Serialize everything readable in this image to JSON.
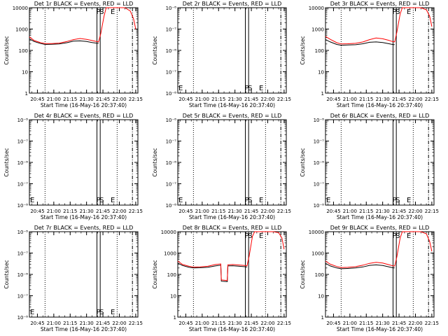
{
  "chart_data": [
    {
      "type": "line",
      "title": "Det 1r BLACK = Events, RED = LLD",
      "xlabel": "Start Time (16-May-16 20:37:40)",
      "ylabel": "Counts/sec",
      "yscale": "log",
      "xlim": [
        "20:37:40",
        "22:17:00"
      ],
      "ylim": [
        1,
        10000
      ],
      "x_tick_labels": [
        "20:45",
        "21:00",
        "21:15",
        "21:30",
        "21:45",
        "22:00",
        "22:15"
      ],
      "y_tick_labels": [
        "1",
        "10",
        "100",
        "1000",
        "10000"
      ],
      "annotations": [
        "P",
        "S",
        "E"
      ],
      "series": [
        {
          "color": "#000000",
          "x": [
            "20:37:40",
            "20:42",
            "20:48",
            "20:52",
            "20:58",
            "21:05",
            "21:12",
            "21:18",
            "21:24",
            "21:30",
            "21:35",
            "21:39",
            "21:41"
          ],
          "values": [
            350,
            260,
            210,
            190,
            195,
            200,
            230,
            270,
            280,
            260,
            235,
            220,
            215
          ]
        },
        {
          "color": "#ff0000",
          "x": [
            "20:37:40",
            "20:42",
            "20:48",
            "20:52",
            "20:58",
            "21:05",
            "21:12",
            "21:18",
            "21:24",
            "21:30",
            "21:35",
            "21:39",
            "21:41",
            "21:43",
            "21:46",
            "21:48",
            "22:00",
            "22:05",
            "22:10",
            "22:13",
            "22:15"
          ],
          "values": [
            430,
            290,
            230,
            210,
            210,
            220,
            260,
            320,
            360,
            330,
            290,
            260,
            250,
            600,
            4000,
            10000,
            10000,
            10000,
            7000,
            3000,
            1000
          ]
        }
      ]
    },
    {
      "type": "line",
      "title": "Det 2r BLACK = Events, RED = LLD",
      "xlabel": "Start Time (16-May-16 20:37:40)",
      "ylabel": "Counts/sec",
      "yscale": "log",
      "xlim": [
        "20:37:40",
        "22:17:00"
      ],
      "ylim": [
        1e-06,
        1e-08
      ],
      "x_tick_labels": [
        "20:45",
        "21:00",
        "21:15",
        "21:30",
        "21:45",
        "22:00",
        "22:15"
      ],
      "y_tick_labels": [
        "10⁻⁸",
        "10⁻⁷",
        "10⁻⁸",
        "10⁻⁷",
        "10⁻⁸"
      ],
      "annotations": [
        "E",
        "P",
        "S",
        "E"
      ],
      "series": []
    },
    {
      "type": "line",
      "title": "Det 3r BLACK = Events, RED = LLD",
      "xlabel": "Start Time (16-May-16 20:37:40)",
      "ylabel": "Counts/sec",
      "yscale": "log",
      "xlim": [
        "20:37:40",
        "22:17:00"
      ],
      "ylim": [
        1,
        10000
      ],
      "x_tick_labels": [
        "20:45",
        "21:00",
        "21:15",
        "21:30",
        "21:45",
        "22:00",
        "22:15"
      ],
      "y_tick_labels": [
        "1",
        "10",
        "100",
        "1000",
        "10000"
      ],
      "annotations": [
        "P",
        "S",
        "E"
      ],
      "series": [
        {
          "color": "#000000",
          "x": [
            "20:37:40",
            "20:42",
            "20:48",
            "20:52",
            "20:58",
            "21:05",
            "21:12",
            "21:18",
            "21:24",
            "21:30",
            "21:35",
            "21:39",
            "21:41"
          ],
          "values": [
            320,
            250,
            190,
            175,
            180,
            185,
            205,
            240,
            250,
            235,
            210,
            190,
            185
          ]
        },
        {
          "color": "#ff0000",
          "x": [
            "20:37:40",
            "20:42",
            "20:48",
            "20:52",
            "20:58",
            "21:05",
            "21:12",
            "21:18",
            "21:24",
            "21:30",
            "21:35",
            "21:39",
            "21:41",
            "21:43",
            "21:46",
            "21:48",
            "22:00",
            "22:05",
            "22:10",
            "22:13",
            "22:15"
          ],
          "values": [
            450,
            330,
            230,
            200,
            205,
            215,
            250,
            320,
            380,
            350,
            300,
            260,
            250,
            700,
            5000,
            10000,
            10000,
            10000,
            8000,
            4000,
            1300
          ]
        }
      ]
    },
    {
      "type": "line",
      "title": "Det 4r BLACK = Events, RED = LLD",
      "xlabel": "Start Time (16-May-16 20:37:40)",
      "ylabel": "Counts/sec",
      "yscale": "log",
      "xlim": [
        "20:37:40",
        "22:17:00"
      ],
      "ylim": [
        1e-06,
        1e-08
      ],
      "x_tick_labels": [
        "20:45",
        "21:00",
        "21:15",
        "21:30",
        "21:45",
        "22:00",
        "22:15"
      ],
      "y_tick_labels": [
        "10⁻⁸",
        "10⁻⁷",
        "10⁻⁸",
        "10⁻⁷",
        "10⁻⁸"
      ],
      "annotations": [
        "E",
        "P",
        "S",
        "E"
      ],
      "series": []
    },
    {
      "type": "line",
      "title": "Det 5r BLACK = Events, RED = LLD",
      "xlabel": "Start Time (16-May-16 20:37:40)",
      "ylabel": "Counts/sec",
      "yscale": "log",
      "xlim": [
        "20:37:40",
        "22:17:00"
      ],
      "ylim": [
        1e-06,
        1e-08
      ],
      "x_tick_labels": [
        "20:45",
        "21:00",
        "21:15",
        "21:30",
        "21:45",
        "22:00",
        "22:15"
      ],
      "y_tick_labels": [
        "10⁻⁸",
        "10⁻⁷",
        "10⁻⁸",
        "10⁻⁷",
        "10⁻⁸"
      ],
      "annotations": [
        "E",
        "P",
        "S",
        "E"
      ],
      "series": []
    },
    {
      "type": "line",
      "title": "Det 6r BLACK = Events, RED = LLD",
      "xlabel": "Start Time (16-May-16 20:37:40)",
      "ylabel": "Counts/sec",
      "yscale": "log",
      "xlim": [
        "20:37:40",
        "22:17:00"
      ],
      "ylim": [
        1e-06,
        1e-08
      ],
      "x_tick_labels": [
        "20:45",
        "21:00",
        "21:15",
        "21:30",
        "21:45",
        "22:00",
        "22:15"
      ],
      "y_tick_labels": [
        "10⁻⁸",
        "10⁻⁷",
        "10⁻⁸",
        "10⁻⁷",
        "10⁻⁸"
      ],
      "annotations": [
        "E",
        "P",
        "S",
        "E"
      ],
      "series": []
    },
    {
      "type": "line",
      "title": "Det 7r BLACK = Events, RED = LLD",
      "xlabel": "Start Time (16-May-16 20:37:40)",
      "ylabel": "Counts/sec",
      "yscale": "log",
      "xlim": [
        "20:37:40",
        "22:17:00"
      ],
      "ylim": [
        1e-06,
        1e-08
      ],
      "x_tick_labels": [
        "20:45",
        "21:00",
        "21:15",
        "21:30",
        "21:45",
        "22:00",
        "22:15"
      ],
      "y_tick_labels": [
        "10⁻⁸",
        "10⁻⁷",
        "10⁻⁸",
        "10⁻⁷",
        "10⁻⁸"
      ],
      "annotations": [
        "E",
        "P",
        "S",
        "E"
      ],
      "series": []
    },
    {
      "type": "line",
      "title": "Det 8r BLACK = Events, RED = LLD",
      "xlabel": "Start Time (16-May-16 20:37:40)",
      "ylabel": "Counts/sec",
      "yscale": "log",
      "xlim": [
        "20:37:40",
        "22:17:00"
      ],
      "ylim": [
        1,
        10000
      ],
      "x_tick_labels": [
        "20:45",
        "21:00",
        "21:15",
        "21:30",
        "21:45",
        "22:00",
        "22:15"
      ],
      "y_tick_labels": [
        "1",
        "10",
        "100",
        "1000",
        "10000"
      ],
      "annotations": [
        "P",
        "S",
        "E"
      ],
      "series": [
        {
          "color": "#000000",
          "x": [
            "20:37:40",
            "20:42",
            "20:48",
            "20:52",
            "20:58",
            "21:05",
            "21:12",
            "21:17",
            "21:17.5",
            "21:23",
            "21:23.5",
            "21:28",
            "21:39",
            "21:41"
          ],
          "values": [
            340,
            260,
            215,
            200,
            205,
            215,
            250,
            270,
            48,
            46,
            250,
            255,
            230,
            220
          ]
        },
        {
          "color": "#ff0000",
          "x": [
            "20:37:40",
            "20:42",
            "20:48",
            "20:52",
            "20:58",
            "21:05",
            "21:12",
            "21:17",
            "21:17.5",
            "21:23",
            "21:23.5",
            "21:28",
            "21:39",
            "21:41",
            "21:43",
            "21:46",
            "21:48",
            "22:00",
            "22:05",
            "22:10",
            "22:13",
            "22:15"
          ],
          "values": [
            420,
            290,
            240,
            220,
            225,
            240,
            290,
            310,
            55,
            52,
            280,
            290,
            260,
            250,
            700,
            6000,
            10000,
            10000,
            10000,
            9000,
            5000,
            1500
          ]
        }
      ]
    },
    {
      "type": "line",
      "title": "Det 9r BLACK = Events, RED = LLD",
      "xlabel": "Start Time (16-May-16 20:37:40)",
      "ylabel": "Counts/sec",
      "yscale": "log",
      "xlim": [
        "20:37:40",
        "22:17:00"
      ],
      "ylim": [
        1,
        10000
      ],
      "x_tick_labels": [
        "20:45",
        "21:00",
        "21:15",
        "21:30",
        "21:45",
        "22:00",
        "22:15"
      ],
      "y_tick_labels": [
        "1",
        "10",
        "100",
        "1000",
        "10000"
      ],
      "annotations": [
        "P",
        "S",
        "E"
      ],
      "series": [
        {
          "color": "#000000",
          "x": [
            "20:37:40",
            "20:42",
            "20:48",
            "20:52",
            "20:58",
            "21:05",
            "21:12",
            "21:18",
            "21:24",
            "21:30",
            "21:35",
            "21:39",
            "21:41"
          ],
          "values": [
            330,
            250,
            200,
            185,
            190,
            200,
            225,
            265,
            280,
            260,
            230,
            205,
            200
          ]
        },
        {
          "color": "#ff0000",
          "x": [
            "20:37:40",
            "20:42",
            "20:48",
            "20:52",
            "20:58",
            "21:05",
            "21:12",
            "21:18",
            "21:24",
            "21:30",
            "21:35",
            "21:39",
            "21:41",
            "21:43",
            "21:46",
            "21:48",
            "22:00",
            "22:05",
            "22:10",
            "22:13",
            "22:15"
          ],
          "values": [
            420,
            300,
            235,
            210,
            215,
            230,
            270,
            330,
            370,
            340,
            290,
            255,
            245,
            650,
            5000,
            10000,
            10000,
            10000,
            8000,
            3500,
            1200
          ]
        }
      ]
    }
  ]
}
